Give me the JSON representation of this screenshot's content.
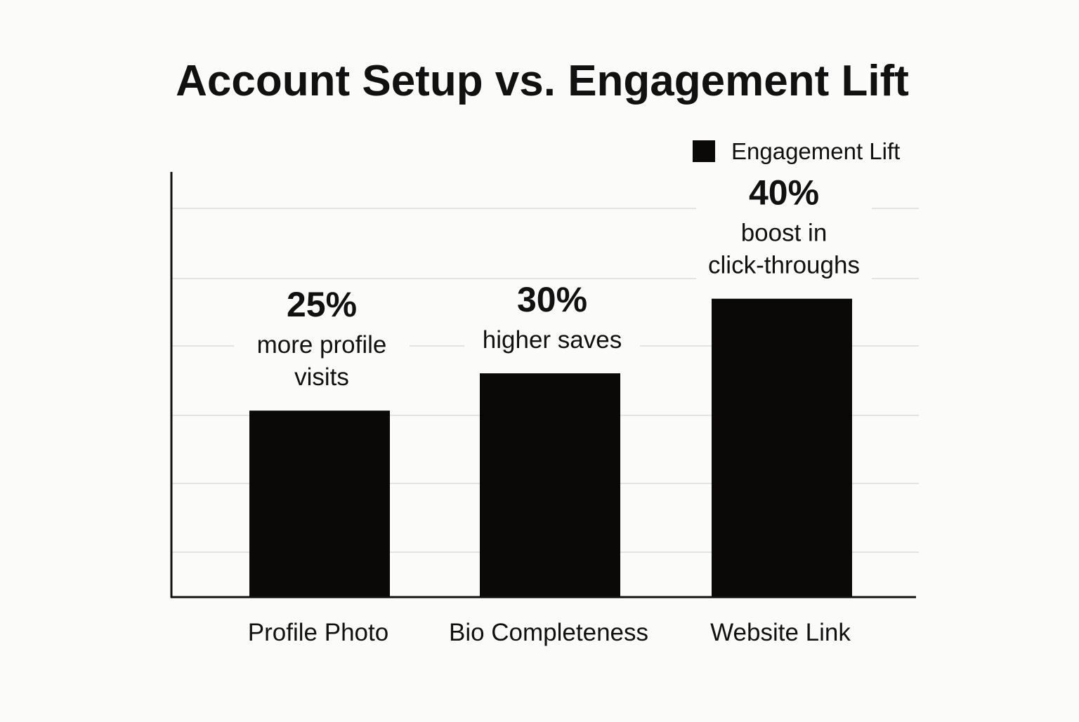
{
  "chart_data": {
    "type": "bar",
    "title": "Account Setup vs. Engagement Lift",
    "xlabel": "",
    "ylabel": "",
    "ylim": [
      0,
      57
    ],
    "grid": true,
    "legend": {
      "position": "top-right",
      "entries": [
        "Engagement Lift"
      ]
    },
    "categories": [
      "Profile Photo",
      "Bio Completeness",
      "Website Link"
    ],
    "series": [
      {
        "name": "Engagement Lift",
        "values": [
          25,
          30,
          40
        ]
      }
    ],
    "annotations": [
      {
        "category": "Profile Photo",
        "value_label": "25%",
        "text_lines": [
          "more profile",
          "visits"
        ]
      },
      {
        "category": "Bio Completeness",
        "value_label": "30%",
        "text_lines": [
          "higher saves"
        ]
      },
      {
        "category": "Website Link",
        "value_label": "40%",
        "text_lines": [
          "boost in",
          "click-throughs"
        ]
      }
    ],
    "colors": {
      "bar": "#0a0908",
      "axis": "#111111",
      "grid": "#d8dcdc",
      "background": "#fbfbf9"
    }
  }
}
